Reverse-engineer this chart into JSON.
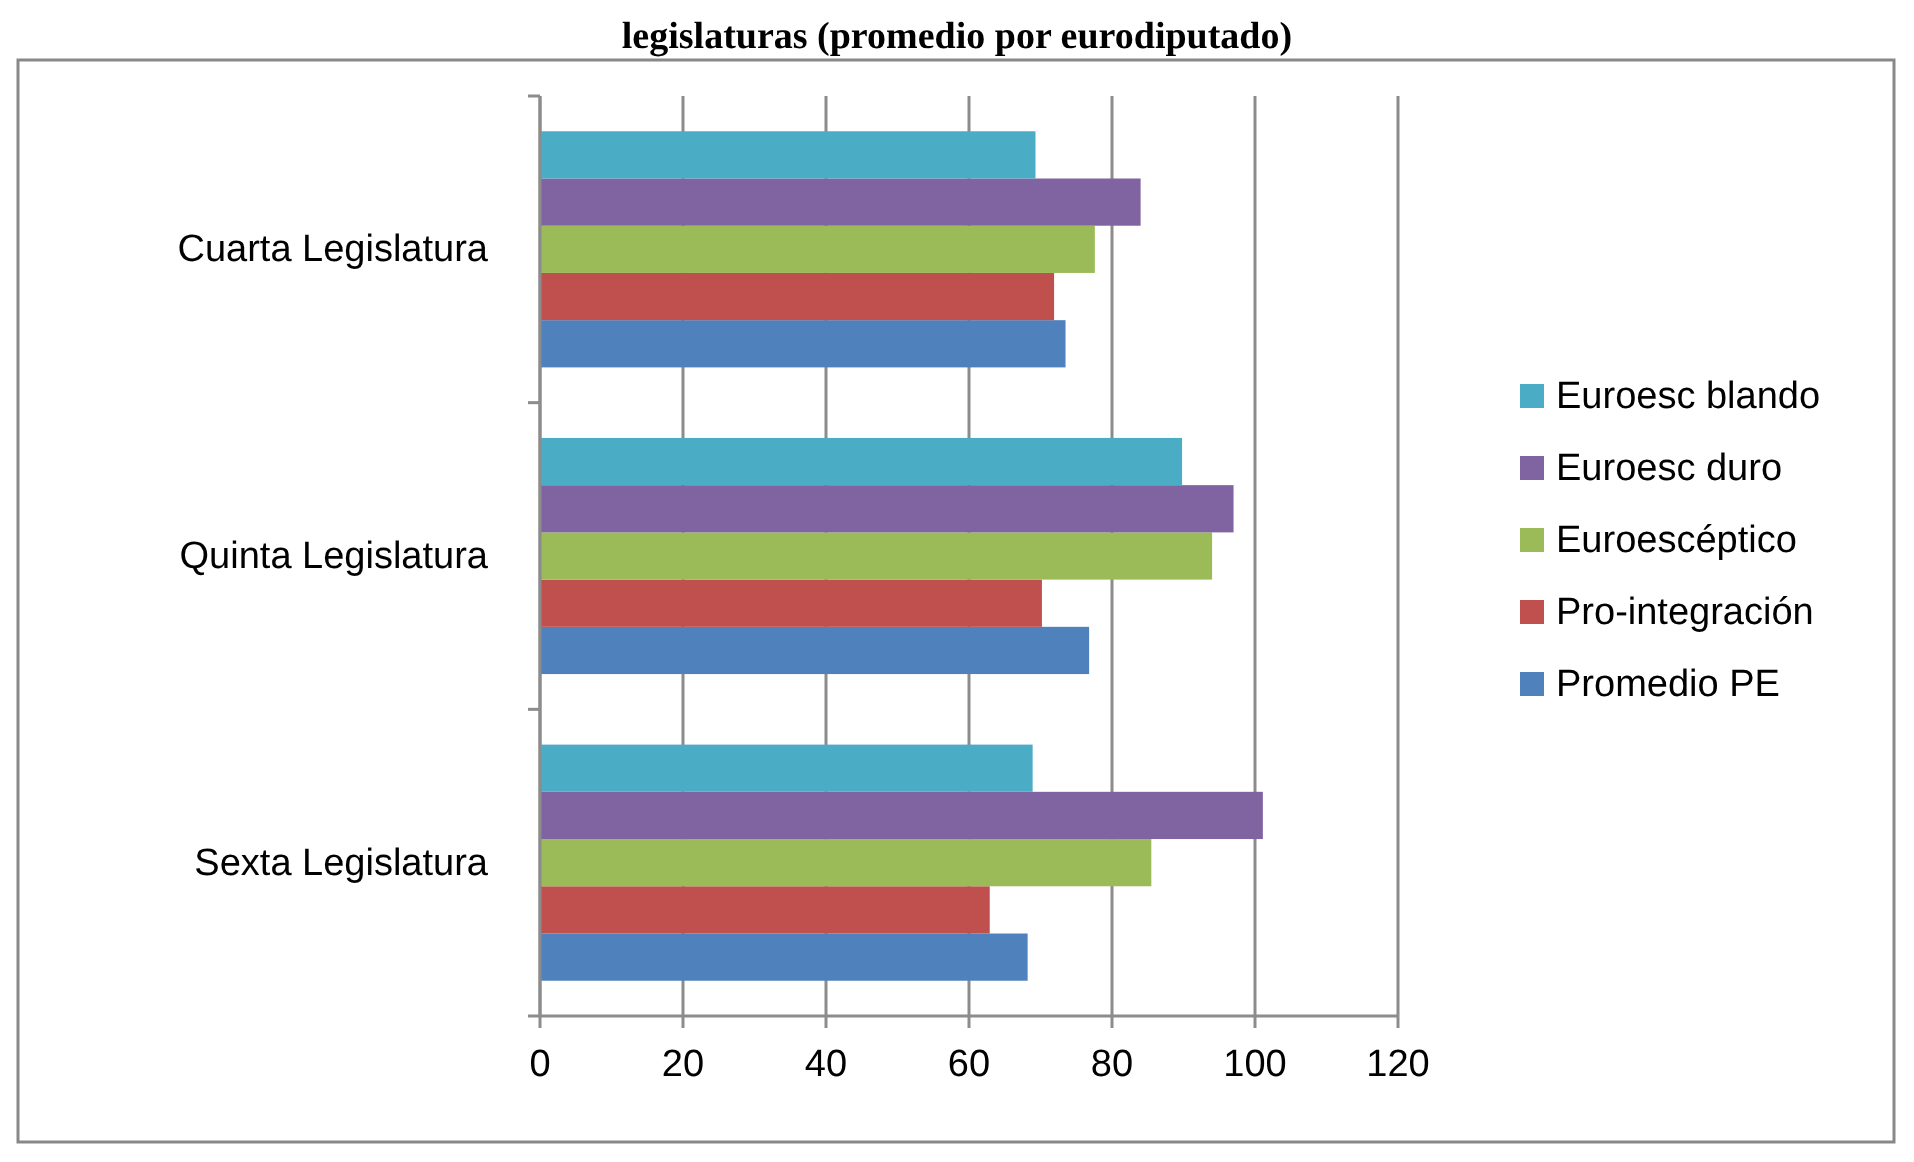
{
  "chart_data": {
    "type": "bar",
    "orientation": "horizontal",
    "title": "legislaturas (promedio por eurodiputado)",
    "categories": [
      "Cuarta Legislatura",
      "Quinta Legislatura",
      "Sexta Legislatura"
    ],
    "series": [
      {
        "name": "Promedio PE",
        "color": "#4f81bd",
        "values": [
          73.5,
          76.8,
          68.2
        ]
      },
      {
        "name": "Pro-integración",
        "color": "#c0504d",
        "values": [
          71.9,
          70.2,
          62.9
        ]
      },
      {
        "name": "Euroescéptico",
        "color": "#9bbb59",
        "values": [
          77.6,
          94.0,
          85.5
        ]
      },
      {
        "name": "Euroesc duro",
        "color": "#8064a2",
        "values": [
          84.0,
          97.0,
          101.1
        ]
      },
      {
        "name": "Euroesc blando",
        "color": "#4bacc6",
        "values": [
          69.3,
          89.8,
          68.9
        ]
      }
    ],
    "xlim": [
      0,
      120
    ],
    "xticks": [
      0,
      20,
      40,
      60,
      80,
      100,
      120
    ],
    "grid": "x",
    "legend": "right"
  }
}
